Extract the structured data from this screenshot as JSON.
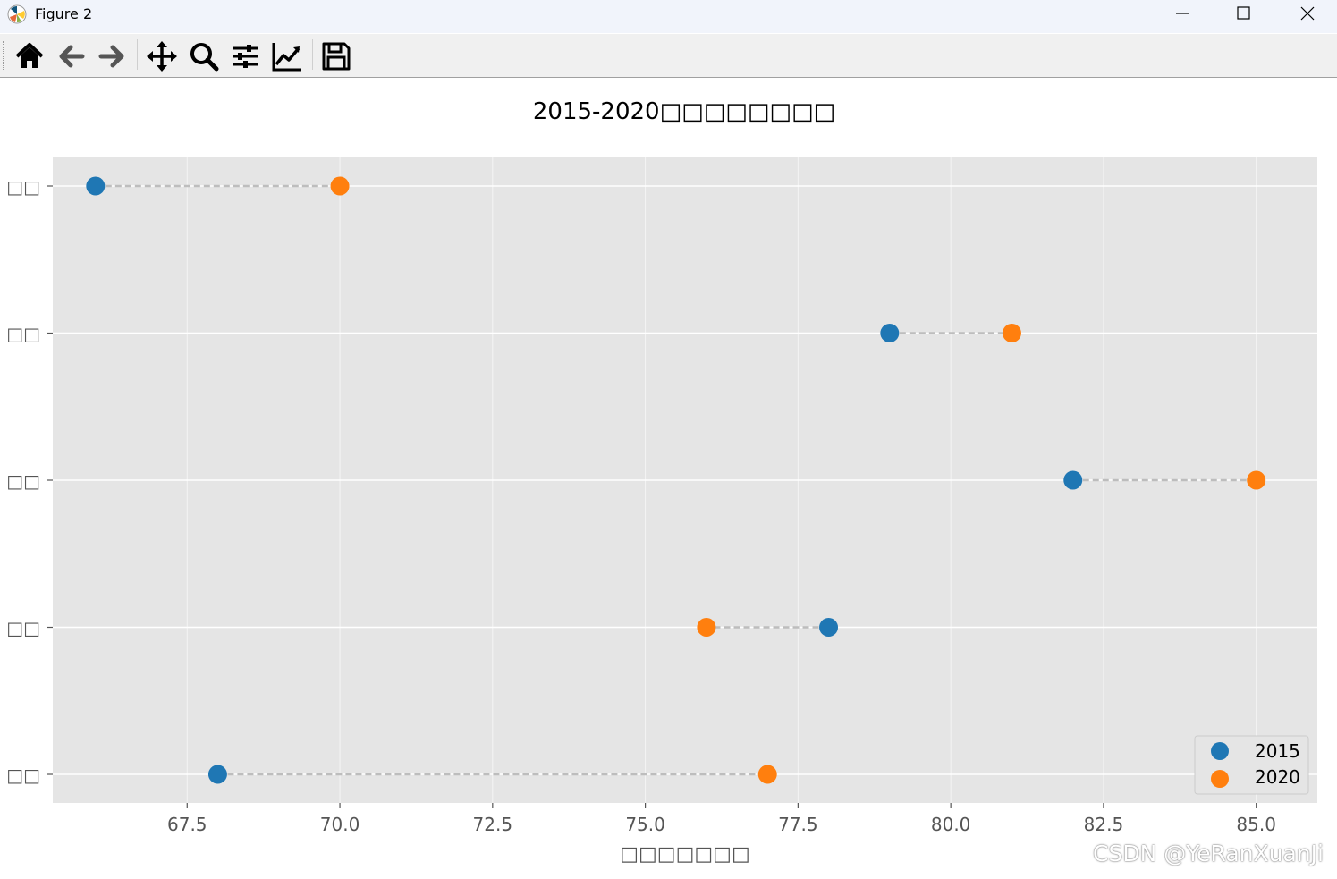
{
  "window": {
    "title": "Figure 2"
  },
  "toolbar": {
    "buttons": [
      {
        "name": "home-button",
        "icon": "home-icon"
      },
      {
        "name": "back-button",
        "icon": "arrow-left-icon"
      },
      {
        "name": "forward-button",
        "icon": "arrow-right-icon"
      },
      {
        "name": "pan-button",
        "icon": "move-icon"
      },
      {
        "name": "zoom-button",
        "icon": "magnifier-icon"
      },
      {
        "name": "configure-subplots-button",
        "icon": "sliders-icon"
      },
      {
        "name": "edit-axis-button",
        "icon": "line-chart-icon"
      },
      {
        "name": "save-button",
        "icon": "floppy-disk-icon"
      }
    ]
  },
  "chart_data": {
    "type": "scatter",
    "title": "2015-2020□□□□□□□□",
    "xlabel": "□□□□□□□",
    "ylabel": "",
    "categories": [
      "□□",
      "□□",
      "□□",
      "□□",
      "□□"
    ],
    "xlim": [
      65.3,
      86.0
    ],
    "xticks": [
      67.5,
      70.0,
      72.5,
      75.0,
      77.5,
      80.0,
      82.5,
      85.0
    ],
    "xtick_labels": [
      "67.5",
      "70.0",
      "72.5",
      "75.0",
      "77.5",
      "80.0",
      "82.5",
      "85.0"
    ],
    "series": [
      {
        "name": "2015",
        "color": "#1f77b4",
        "values": [
          66.0,
          79.0,
          82.0,
          78.0,
          68.0
        ]
      },
      {
        "name": "2020",
        "color": "#ff7f0e",
        "values": [
          70.0,
          81.0,
          85.0,
          76.0,
          77.0
        ]
      }
    ],
    "connector_color": "#bdbdbd",
    "grid": true,
    "background": "#e5e5e5",
    "legend_position": "lower-right"
  },
  "watermark": "CSDN @YeRanXuanJi"
}
